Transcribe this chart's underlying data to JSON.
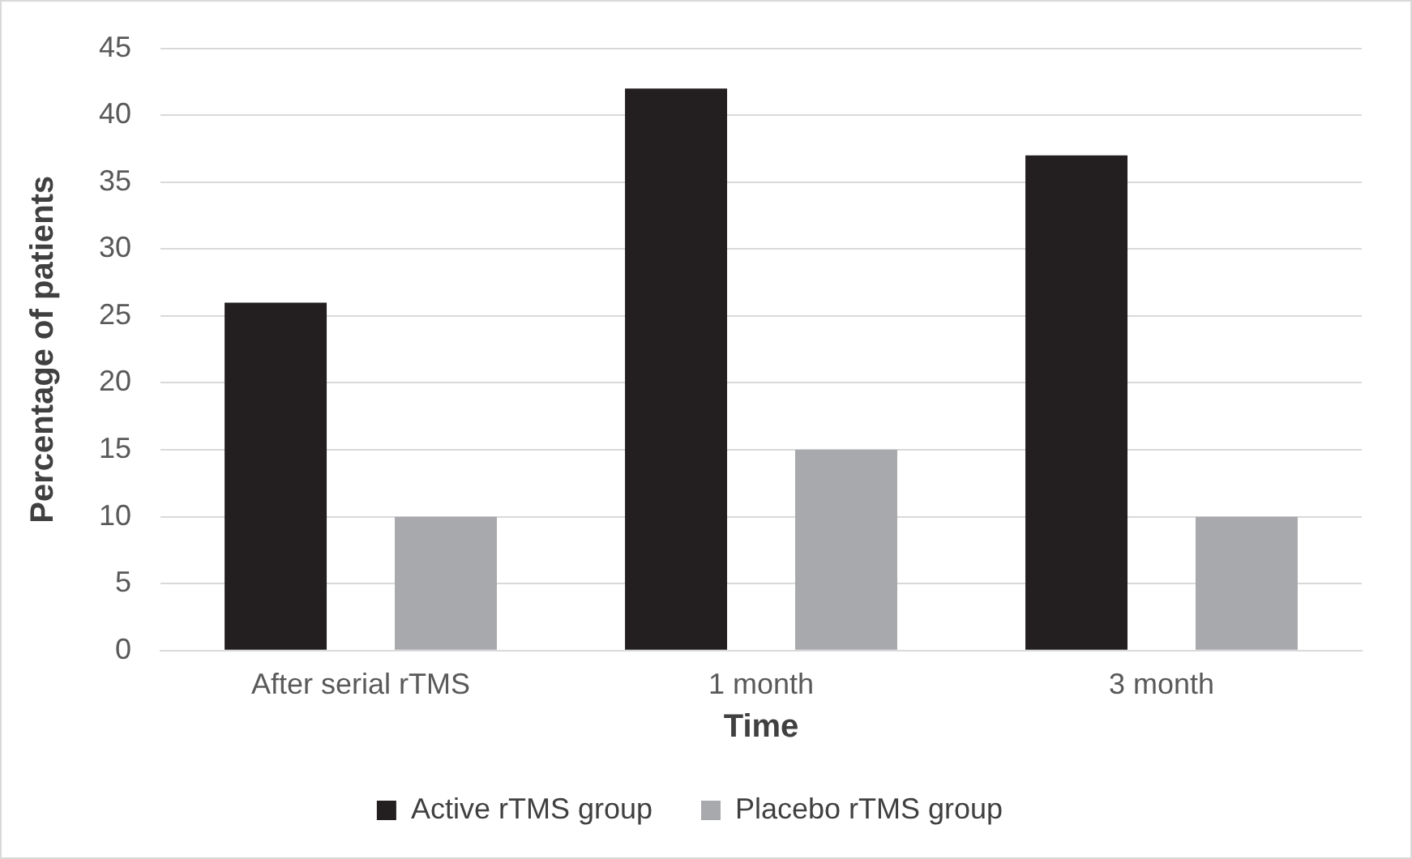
{
  "chart_data": {
    "type": "bar",
    "xlabel": "Time",
    "ylabel": "Percentage of patients",
    "categories": [
      "After serial rTMS",
      "1 month",
      "3 month"
    ],
    "series": [
      {
        "name": "Active rTMS group",
        "color": "#231f20",
        "values": [
          26,
          42,
          37
        ]
      },
      {
        "name": "Placebo rTMS group",
        "color": "#a7a9ac",
        "values": [
          10,
          15,
          10
        ]
      }
    ],
    "ylim": [
      0,
      45
    ],
    "yticks": [
      0,
      5,
      10,
      15,
      20,
      25,
      30,
      35,
      40,
      45
    ],
    "grid": "y",
    "legend": "bottom"
  }
}
